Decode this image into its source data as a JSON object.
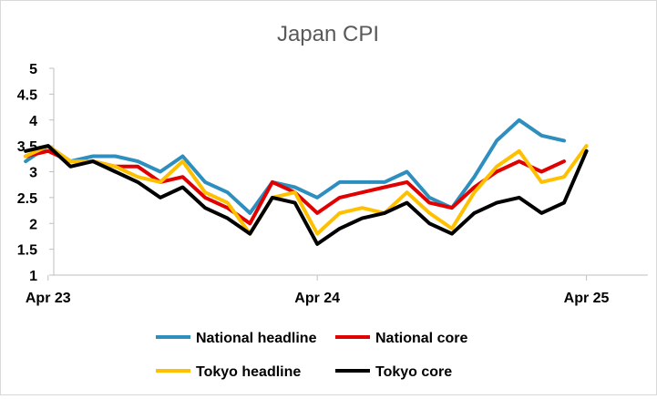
{
  "chart_data": {
    "type": "line",
    "title": "Japan CPI",
    "xlabel": "",
    "ylabel": "",
    "ylim": [
      1,
      5
    ],
    "yticks": [
      "1",
      "1.5",
      "2",
      "2.5",
      "3",
      "3.5",
      "4",
      "4.5",
      "5"
    ],
    "xtick_labels": [
      "Apr 23",
      "Apr 24",
      "Apr 25"
    ],
    "x": [
      "Mar 23",
      "Apr 23",
      "May 23",
      "Jun 23",
      "Jul 23",
      "Aug 23",
      "Sep 23",
      "Oct 23",
      "Nov 23",
      "Dec 23",
      "Jan 24",
      "Feb 24",
      "Mar 24",
      "Apr 24",
      "May 24",
      "Jun 24",
      "Jul 24",
      "Aug 24",
      "Sep 24",
      "Oct 24",
      "Nov 24",
      "Dec 24",
      "Jan 25",
      "Feb 25",
      "Mar 25",
      "Apr 25"
    ],
    "grid": false,
    "legend_position": "bottom",
    "series": [
      {
        "name": "National headline",
        "color": "#2e8fbf",
        "values": [
          3.2,
          3.5,
          3.2,
          3.3,
          3.3,
          3.2,
          3.0,
          3.3,
          2.8,
          2.6,
          2.2,
          2.8,
          2.7,
          2.5,
          2.8,
          2.8,
          2.8,
          3.0,
          2.5,
          2.3,
          2.9,
          3.6,
          4.0,
          3.7,
          3.6,
          null
        ]
      },
      {
        "name": "National core",
        "color": "#e00000",
        "values": [
          3.3,
          3.4,
          3.2,
          3.2,
          3.1,
          3.1,
          2.8,
          2.9,
          2.5,
          2.3,
          2.0,
          2.8,
          2.6,
          2.2,
          2.5,
          2.6,
          2.7,
          2.8,
          2.4,
          2.3,
          2.7,
          3.0,
          3.2,
          3.0,
          3.2,
          null
        ]
      },
      {
        "name": "Tokyo headline",
        "color": "#ffc000",
        "values": [
          3.3,
          3.5,
          3.2,
          3.2,
          3.1,
          2.9,
          2.8,
          3.2,
          2.6,
          2.4,
          1.8,
          2.5,
          2.6,
          1.8,
          2.2,
          2.3,
          2.2,
          2.6,
          2.2,
          1.9,
          2.6,
          3.1,
          3.4,
          2.8,
          2.9,
          3.5
        ]
      },
      {
        "name": "Tokyo core",
        "color": "#000000",
        "values": [
          3.4,
          3.5,
          3.1,
          3.2,
          3.0,
          2.8,
          2.5,
          2.7,
          2.3,
          2.1,
          1.8,
          2.5,
          2.4,
          1.6,
          1.9,
          2.1,
          2.2,
          2.4,
          2.0,
          1.8,
          2.2,
          2.4,
          2.5,
          2.2,
          2.4,
          3.4
        ]
      }
    ]
  }
}
